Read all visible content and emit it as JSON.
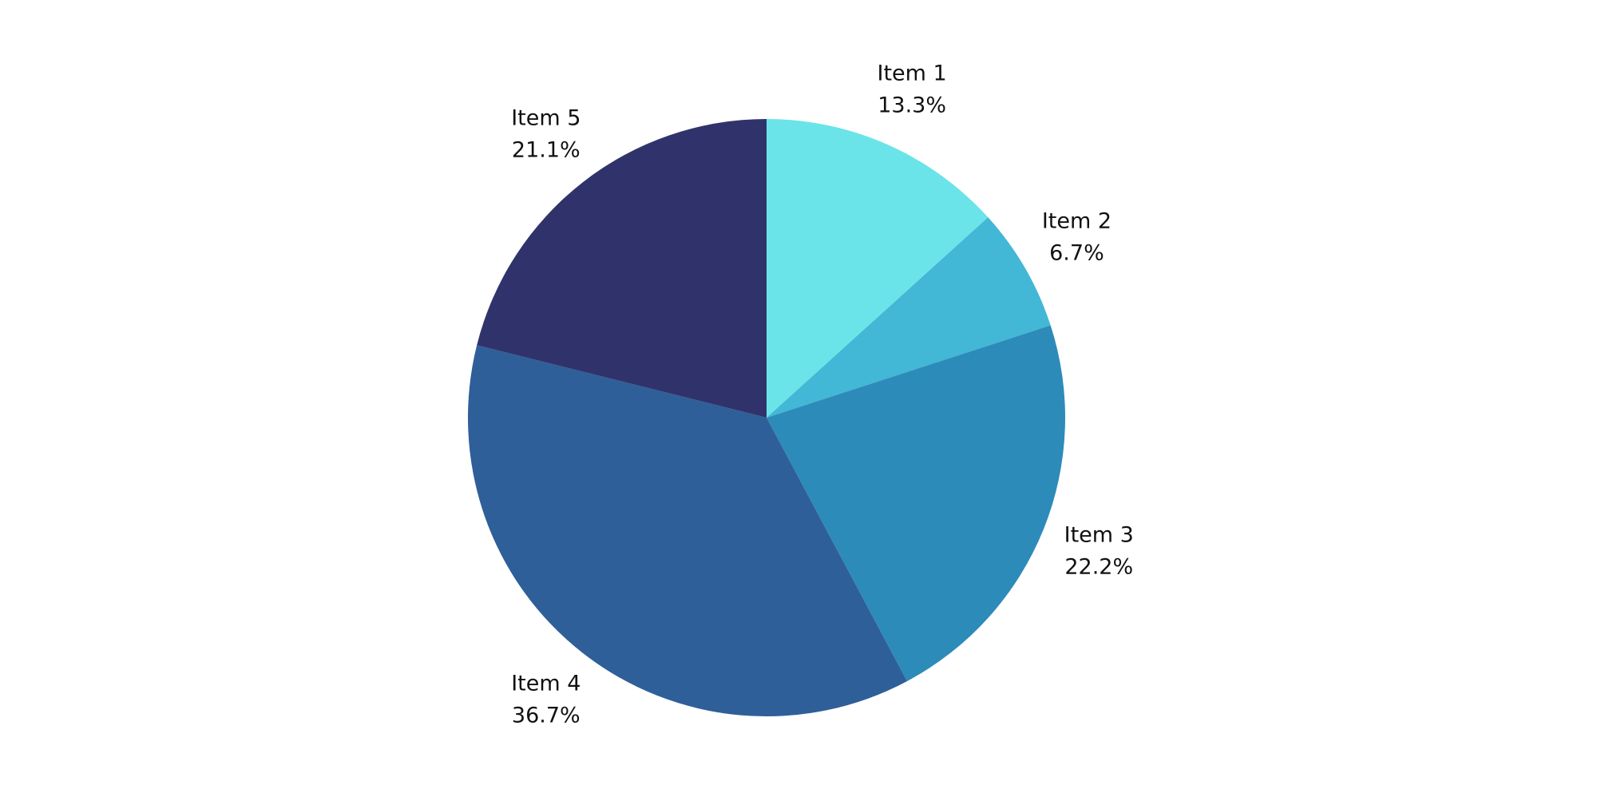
{
  "chart_data": {
    "type": "pie",
    "categories": [
      "Item 1",
      "Item 2",
      "Item 3",
      "Item 4",
      "Item 5"
    ],
    "values": [
      13.3,
      6.7,
      22.2,
      36.7,
      21.1
    ],
    "value_labels": [
      "13.3%",
      "6.7%",
      "22.2%",
      "36.7%",
      "21.1%"
    ],
    "colors": [
      "#6ae4e8",
      "#42b7d6",
      "#2d8bba",
      "#2f5f98",
      "#30336b"
    ]
  }
}
